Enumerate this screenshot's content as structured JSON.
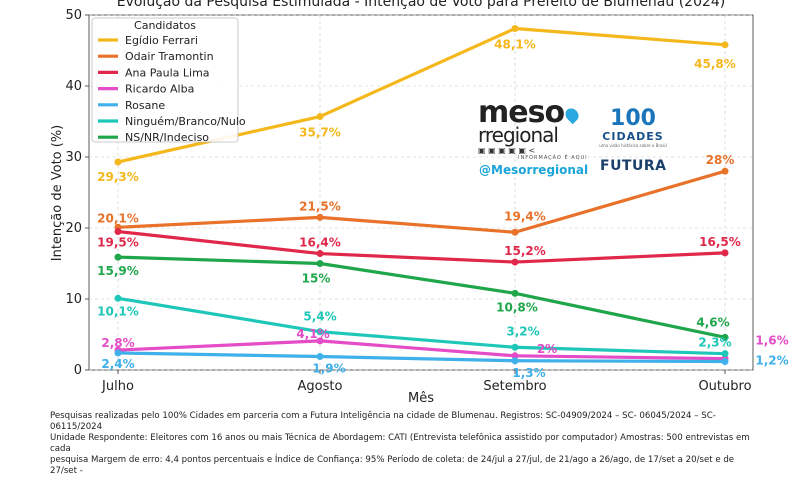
{
  "chart_data": {
    "type": "line",
    "title": "Evolução da Pesquisa Estimulada - Intenção de Voto para Prefeito de Blumenau (2024)",
    "xlabel": "Mês",
    "ylabel": "Intenção de Voto (%)",
    "categories": [
      "Julho",
      "Agosto",
      "Setembro",
      "Outubro"
    ],
    "ylim": [
      0,
      50
    ],
    "yticks": [
      0,
      10,
      20,
      30,
      40,
      50
    ],
    "grid": true,
    "legend_title": "Candidatos",
    "legend_position": "top-left",
    "series": [
      {
        "name": "Egídio Ferrari",
        "color": "#f5b81c",
        "values": [
          29.3,
          35.7,
          48.1,
          45.8
        ],
        "labels": [
          "29,3%",
          "35,7%",
          "48,1%",
          "45,8%"
        ]
      },
      {
        "name": "Odair Tramontin",
        "color": "#e8722a",
        "values": [
          20.1,
          21.5,
          19.4,
          28
        ],
        "labels": [
          "20,1%",
          "21,5%",
          "19,4%",
          "28%"
        ]
      },
      {
        "name": "Ana Paula Lima",
        "color": "#e0284a",
        "values": [
          19.5,
          16.4,
          15.2,
          16.5
        ],
        "labels": [
          "19,5%",
          "16,4%",
          "15,2%",
          "16,5%"
        ]
      },
      {
        "name": "Ricardo Alba",
        "color": "#e54cc8",
        "values": [
          2.8,
          4.1,
          2,
          1.6
        ],
        "labels": [
          "2,8%",
          "4,1%",
          "2%",
          "1,6%"
        ]
      },
      {
        "name": "Rosane",
        "color": "#3fb0ea",
        "values": [
          2.4,
          1.9,
          1.3,
          1.2
        ],
        "labels": [
          "2,4%",
          "1,9%",
          "1,3%",
          "1,2%"
        ]
      },
      {
        "name": "Ninguém/Branco/Nulo",
        "color": "#1fc7b8",
        "values": [
          10.1,
          5.4,
          3.2,
          2.3
        ],
        "labels": [
          "10,1%",
          "5,4%",
          "3,2%",
          "2,3%"
        ]
      },
      {
        "name": "NS/NR/Indeciso",
        "color": "#1fa64a",
        "values": [
          15.9,
          15,
          10.8,
          4.6
        ],
        "labels": [
          "15,9%",
          "15%",
          "10,8%",
          "4,6%"
        ]
      }
    ]
  },
  "logos": {
    "meso_line1": "meso",
    "meso_line2": "rregional",
    "meso_icons": "▣ ▣ ▣ ▣ ▣ <",
    "meso_info": "INFORMAÇÃO É AQUI",
    "handle": "@Mesorregional",
    "cidades_number": "100",
    "cidades_word": "CIDADES",
    "cidades_sub": "uma visão histórica sobre o Brasil",
    "futura": "FUTURA"
  },
  "footer": {
    "line1": "Pesquisas realizadas pelo 100% Cidades em parceria com a Futura Inteligência na cidade de Blumenau. Registros: SC-04909/2024 – SC- 06045/2024 – SC-06115/2024",
    "line2": "Unidade Respondente: Eleitores com 16 anos ou mais Técnica de Abordagem: CATI (Entrevista telefônica assistido por computador) Amostras: 500 entrevistas em cada",
    "line3": "pesquisa   Margem de erro: 4,4 pontos percentuais e Índice de Confiança: 95% Período de coleta: de 24/jul a 27/jul, de 21/ago a 26/ago, de 17/set a 20/set e de 27/set -"
  }
}
